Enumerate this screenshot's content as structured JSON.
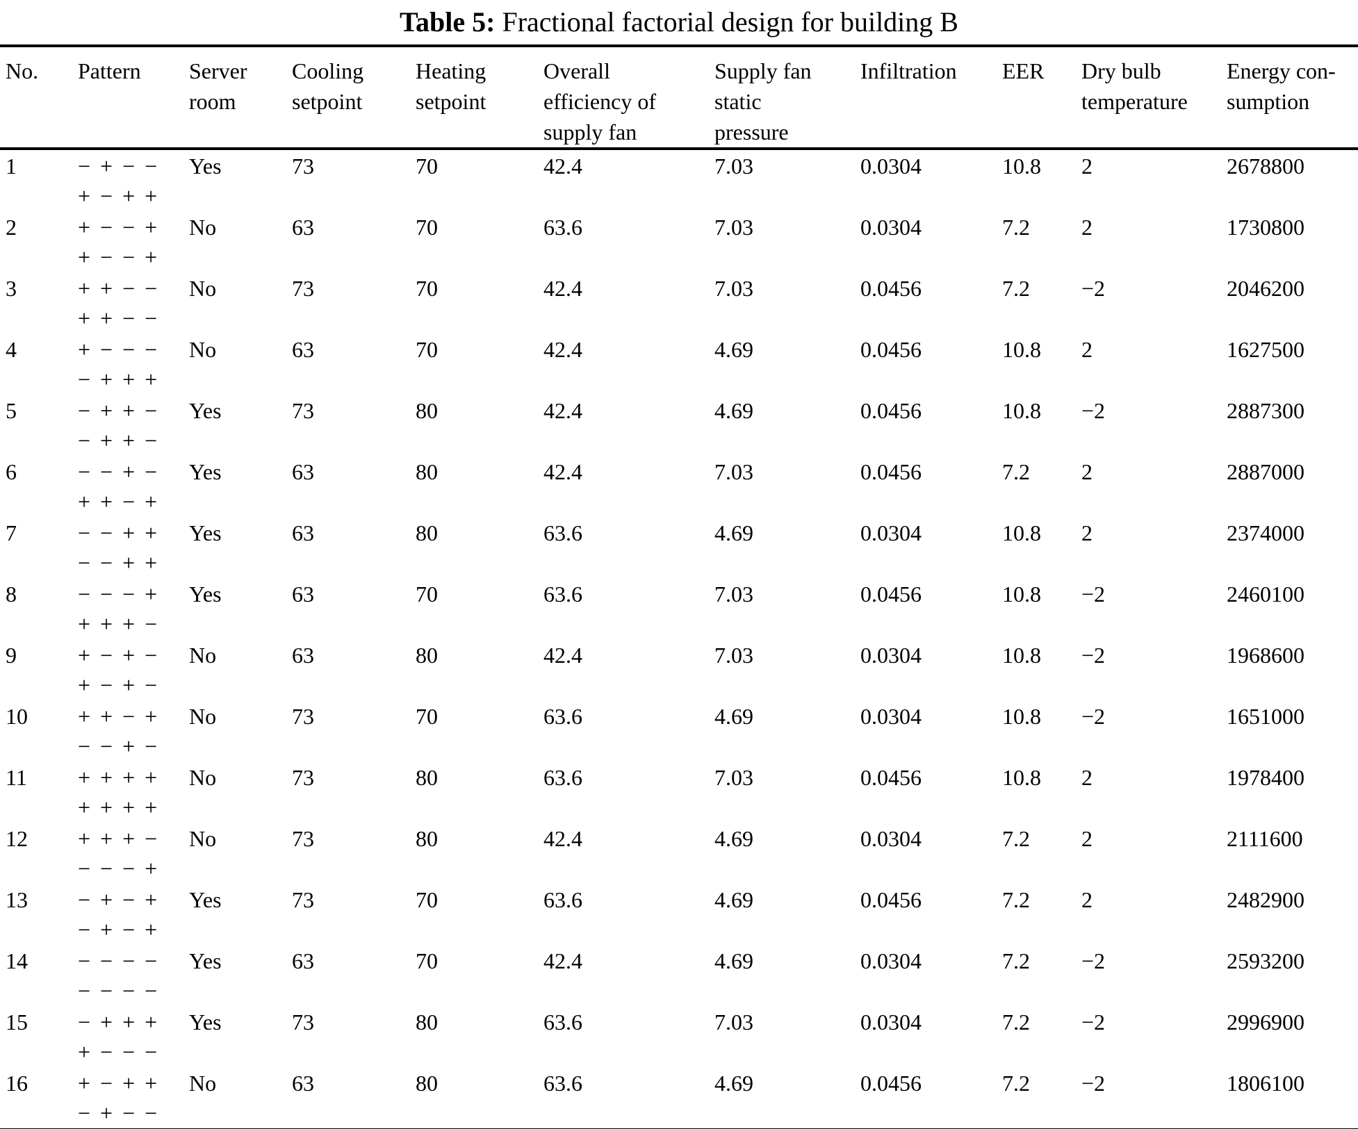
{
  "caption": {
    "label": "Table 5:",
    "text": "Fractional factorial design for building B"
  },
  "table": {
    "headers": [
      "No.",
      "Pattern",
      "Server\nroom",
      "Cooling\nsetpoint",
      "Heating\nsetpoint",
      "Overall\nefficiency of\nsupply fan",
      "Supply fan\nstatic\npressure",
      "Infiltration",
      "EER",
      "Dry bulb\ntemperature",
      "Energy con-\nsumption"
    ],
    "rows": [
      {
        "no": "1",
        "pattern1": "− + − −",
        "pattern2": "+ − + +",
        "server": "Yes",
        "cooling": "73",
        "heating": "70",
        "efficiency": "42.4",
        "pressure": "7.03",
        "infiltration": "0.0304",
        "eer": "10.8",
        "drybulb": "2",
        "energy": "2678800"
      },
      {
        "no": "2",
        "pattern1": "+ − − +",
        "pattern2": "+ − − +",
        "server": "No",
        "cooling": "63",
        "heating": "70",
        "efficiency": "63.6",
        "pressure": "7.03",
        "infiltration": "0.0304",
        "eer": "7.2",
        "drybulb": "2",
        "energy": "1730800"
      },
      {
        "no": "3",
        "pattern1": "+ + − −",
        "pattern2": "+ + − −",
        "server": "No",
        "cooling": "73",
        "heating": "70",
        "efficiency": "42.4",
        "pressure": "7.03",
        "infiltration": "0.0456",
        "eer": "7.2",
        "drybulb": "−2",
        "energy": "2046200"
      },
      {
        "no": "4",
        "pattern1": "+ − − −",
        "pattern2": "− + + +",
        "server": "No",
        "cooling": "63",
        "heating": "70",
        "efficiency": "42.4",
        "pressure": "4.69",
        "infiltration": "0.0456",
        "eer": "10.8",
        "drybulb": "2",
        "energy": "1627500"
      },
      {
        "no": "5",
        "pattern1": "− + + −",
        "pattern2": "− + + −",
        "server": "Yes",
        "cooling": "73",
        "heating": "80",
        "efficiency": "42.4",
        "pressure": "4.69",
        "infiltration": "0.0456",
        "eer": "10.8",
        "drybulb": "−2",
        "energy": "2887300"
      },
      {
        "no": "6",
        "pattern1": "− − + −",
        "pattern2": "+ + − +",
        "server": "Yes",
        "cooling": "63",
        "heating": "80",
        "efficiency": "42.4",
        "pressure": "7.03",
        "infiltration": "0.0456",
        "eer": "7.2",
        "drybulb": "2",
        "energy": "2887000"
      },
      {
        "no": "7",
        "pattern1": "− − + +",
        "pattern2": "− − + +",
        "server": "Yes",
        "cooling": "63",
        "heating": "80",
        "efficiency": "63.6",
        "pressure": "4.69",
        "infiltration": "0.0304",
        "eer": "10.8",
        "drybulb": "2",
        "energy": "2374000"
      },
      {
        "no": "8",
        "pattern1": "− − − +",
        "pattern2": "+ + + −",
        "server": "Yes",
        "cooling": "63",
        "heating": "70",
        "efficiency": "63.6",
        "pressure": "7.03",
        "infiltration": "0.0456",
        "eer": "10.8",
        "drybulb": "−2",
        "energy": "2460100"
      },
      {
        "no": "9",
        "pattern1": "+ − + −",
        "pattern2": "+ − + −",
        "server": "No",
        "cooling": "63",
        "heating": "80",
        "efficiency": "42.4",
        "pressure": "7.03",
        "infiltration": "0.0304",
        "eer": "10.8",
        "drybulb": "−2",
        "energy": "1968600"
      },
      {
        "no": "10",
        "pattern1": "+ + − +",
        "pattern2": "− − + −",
        "server": "No",
        "cooling": "73",
        "heating": "70",
        "efficiency": "63.6",
        "pressure": "4.69",
        "infiltration": "0.0304",
        "eer": "10.8",
        "drybulb": "−2",
        "energy": "1651000"
      },
      {
        "no": "11",
        "pattern1": "+ + + +",
        "pattern2": "+ + + +",
        "server": "No",
        "cooling": "73",
        "heating": "80",
        "efficiency": "63.6",
        "pressure": "7.03",
        "infiltration": "0.0456",
        "eer": "10.8",
        "drybulb": "2",
        "energy": "1978400"
      },
      {
        "no": "12",
        "pattern1": "+ + + −",
        "pattern2": "− − − +",
        "server": "No",
        "cooling": "73",
        "heating": "80",
        "efficiency": "42.4",
        "pressure": "4.69",
        "infiltration": "0.0304",
        "eer": "7.2",
        "drybulb": "2",
        "energy": "2111600"
      },
      {
        "no": "13",
        "pattern1": "− + − +",
        "pattern2": "− + − +",
        "server": "Yes",
        "cooling": "73",
        "heating": "70",
        "efficiency": "63.6",
        "pressure": "4.69",
        "infiltration": "0.0456",
        "eer": "7.2",
        "drybulb": "2",
        "energy": "2482900"
      },
      {
        "no": "14",
        "pattern1": "− − − −",
        "pattern2": "− − − −",
        "server": "Yes",
        "cooling": "63",
        "heating": "70",
        "efficiency": "42.4",
        "pressure": "4.69",
        "infiltration": "0.0304",
        "eer": "7.2",
        "drybulb": "−2",
        "energy": "2593200"
      },
      {
        "no": "15",
        "pattern1": "− + + +",
        "pattern2": "+ − − −",
        "server": "Yes",
        "cooling": "73",
        "heating": "80",
        "efficiency": "63.6",
        "pressure": "7.03",
        "infiltration": "0.0304",
        "eer": "7.2",
        "drybulb": "−2",
        "energy": "2996900"
      },
      {
        "no": "16",
        "pattern1": "+ − + +",
        "pattern2": "− + − −",
        "server": "No",
        "cooling": "63",
        "heating": "80",
        "efficiency": "63.6",
        "pressure": "4.69",
        "infiltration": "0.0456",
        "eer": "7.2",
        "drybulb": "−2",
        "energy": "1806100"
      }
    ]
  }
}
